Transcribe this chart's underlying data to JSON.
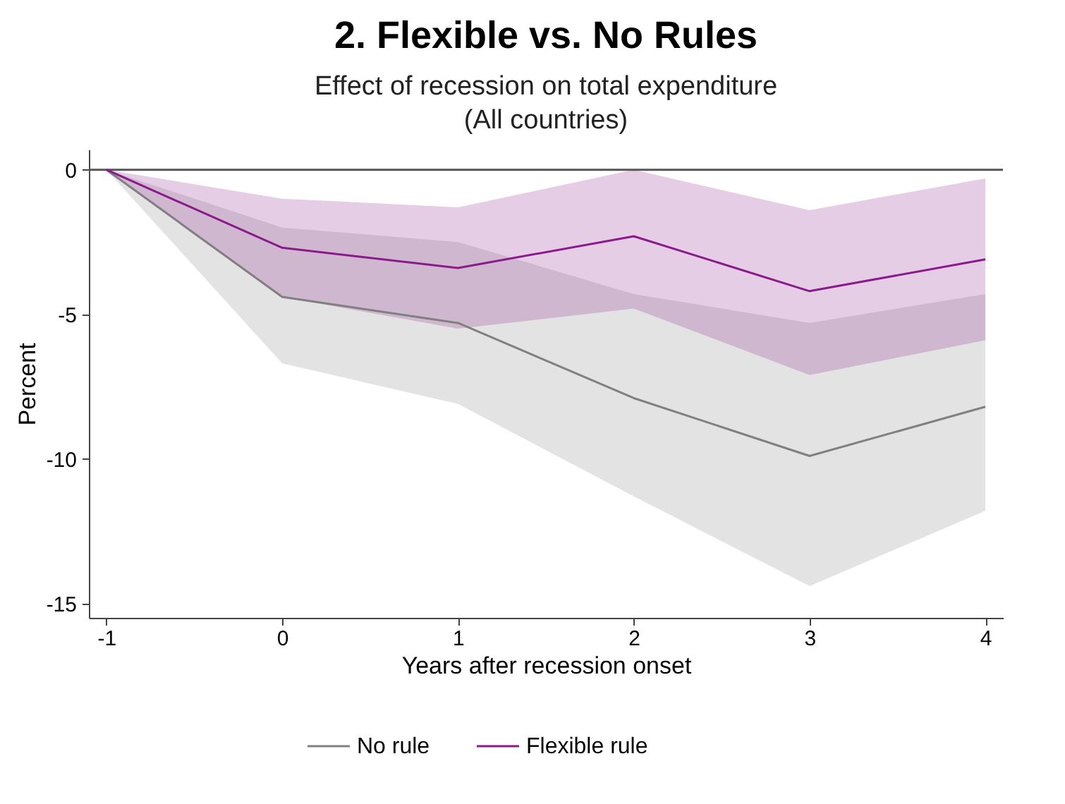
{
  "chart_data": {
    "type": "line",
    "title": "2. Flexible vs. No Rules",
    "subtitle": "Effect of recession on total expenditure\n(All countries)",
    "xlabel": "Years after recession onset",
    "ylabel": "Percent",
    "x": [
      -1,
      0,
      1,
      2,
      3,
      4
    ],
    "series": [
      {
        "name": "No rule",
        "color": "#808080",
        "values": [
          0,
          -4.4,
          -5.3,
          -7.9,
          -9.9,
          -8.2
        ],
        "lower": [
          0,
          -6.7,
          -8.1,
          -11.3,
          -14.4,
          -11.8
        ],
        "upper": [
          0,
          -2.0,
          -2.5,
          -4.3,
          -5.3,
          -4.3
        ]
      },
      {
        "name": "Flexible rule",
        "color": "#8b1a8b",
        "values": [
          0,
          -2.7,
          -3.4,
          -2.3,
          -4.2,
          -3.1
        ],
        "lower": [
          0,
          -4.4,
          -5.5,
          -4.8,
          -7.1,
          -5.9
        ],
        "upper": [
          0,
          -1.0,
          -1.3,
          0,
          -1.4,
          -0.3
        ]
      }
    ],
    "xlim": [
      -1.1,
      4.1
    ],
    "xticks": [
      -1,
      0,
      1,
      2,
      3,
      4
    ],
    "ylim": [
      -15.5,
      0.7
    ],
    "yticks": [
      -15,
      -10,
      -5,
      0
    ],
    "ref_lines": [
      {
        "axis": "y",
        "value": 0,
        "color": "#555555"
      }
    ],
    "grid": false,
    "legend": "bottom"
  }
}
